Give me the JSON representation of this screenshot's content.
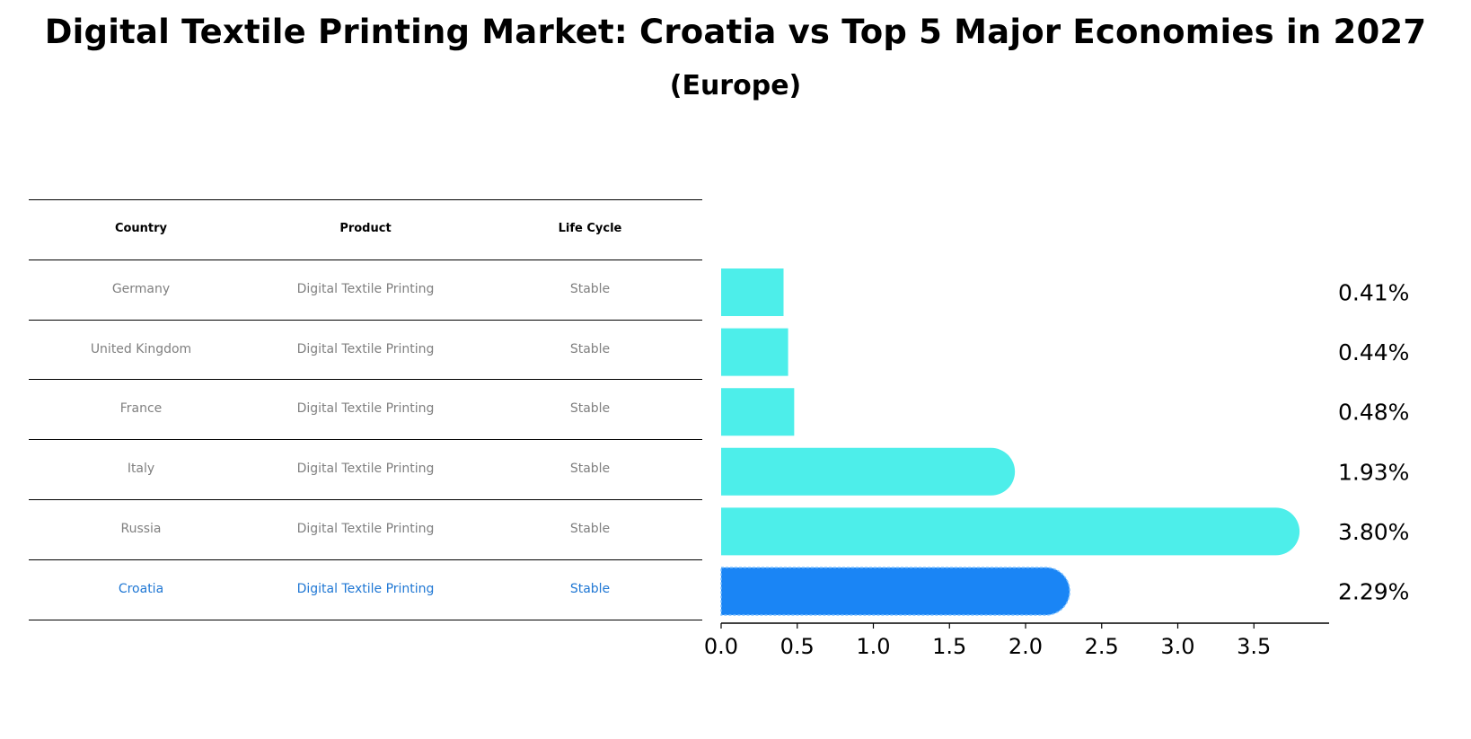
{
  "title": "Digital Textile Printing Market: Croatia vs Top 5 Major Economies in 2027",
  "subtitle": "(Europe)",
  "table": {
    "headers": [
      "Country",
      "Product",
      "Life Cycle"
    ],
    "rows": [
      {
        "country": "Germany",
        "product": "Digital Textile Printing",
        "life_cycle": "Stable"
      },
      {
        "country": "United Kingdom",
        "product": "Digital Textile Printing",
        "life_cycle": "Stable"
      },
      {
        "country": "France",
        "product": "Digital Textile Printing",
        "life_cycle": "Stable"
      },
      {
        "country": "Italy",
        "product": "Digital Textile Printing",
        "life_cycle": "Stable"
      },
      {
        "country": "Russia",
        "product": "Digital Textile Printing",
        "life_cycle": "Stable"
      },
      {
        "country": "Croatia",
        "product": "Digital Textile Printing",
        "life_cycle": "Stable"
      }
    ]
  },
  "chart_data": {
    "type": "bar",
    "orientation": "horizontal",
    "title": "Digital Textile Printing Market: Croatia vs Top 5 Major Economies in 2027",
    "subtitle": "(Europe)",
    "categories": [
      "Germany",
      "United Kingdom",
      "France",
      "Italy",
      "Russia",
      "Croatia"
    ],
    "values": [
      0.41,
      0.44,
      0.48,
      1.93,
      3.8,
      2.29
    ],
    "value_labels": [
      "0.41%",
      "0.44%",
      "0.48%",
      "1.93%",
      "3.80%",
      "2.29%"
    ],
    "xlim": [
      0,
      4.0
    ],
    "xticks": [
      0.0,
      0.5,
      1.0,
      1.5,
      2.0,
      2.5,
      3.0,
      3.5
    ],
    "xtick_labels": [
      "0.0",
      "0.5",
      "1.0",
      "1.5",
      "2.0",
      "2.5",
      "3.0",
      "3.5"
    ],
    "highlight": "Croatia",
    "colors": {
      "default": "#4deeea",
      "highlight": "#1a85f5",
      "highlight_text": "#1f77d4"
    }
  }
}
